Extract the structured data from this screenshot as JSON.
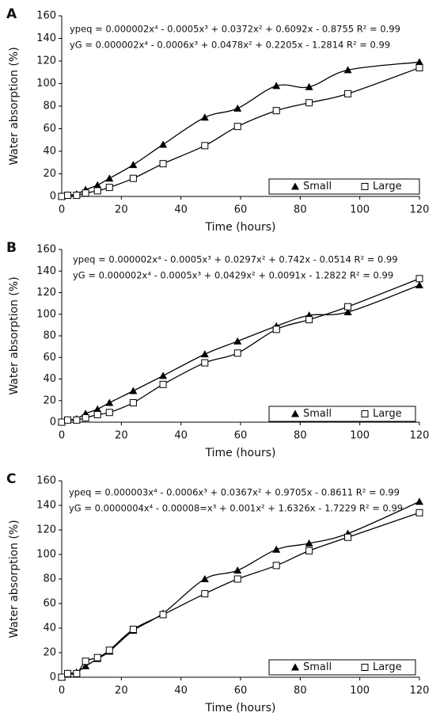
{
  "chart_data": [
    {
      "type": "scatter",
      "label": "A",
      "x_label": "Time (hours)",
      "y_label": "Water absorption (%)",
      "annotations": [
        "ypeq = 0.000002x⁴ - 0.0005x³ + 0.0372x² + 0.6092x - 0.8755 R² = 0.99",
        "yG = 0.000002x⁴ - 0.0006x³ + 0.0478x² + 0.2205x - 1.2814 R² = 0.99"
      ],
      "x": [
        0,
        2,
        5,
        8,
        12,
        16,
        24,
        34,
        48,
        59,
        72,
        83,
        96,
        120
      ],
      "series": [
        {
          "name": "Small",
          "color": "#000000",
          "marker": "triangle",
          "values": [
            0,
            1,
            2,
            6,
            10,
            16,
            28,
            46,
            70,
            78,
            98,
            97,
            112,
            119
          ]
        },
        {
          "name": "Large",
          "color": "#000000",
          "marker": "square",
          "values": [
            0,
            1,
            1,
            3,
            5,
            8,
            16,
            29,
            45,
            62,
            76,
            83,
            91,
            114
          ]
        }
      ],
      "xlim": [
        0,
        120
      ],
      "xticks": [
        0,
        20,
        40,
        60,
        80,
        100,
        120
      ],
      "ylim": [
        0,
        160
      ],
      "yticks": [
        0,
        20,
        40,
        60,
        80,
        100,
        120,
        140,
        160
      ],
      "legend": "lower right"
    },
    {
      "type": "scatter",
      "label": "B",
      "x_label": "Time (hours)",
      "y_label": "Water absorption (%)",
      "annotations": [
        "ypeq = 0.000002x⁴ - 0.0005x³ + 0.0297x² + 0.742x - 0.0514 R² = 0.99",
        "yG = 0.000002x⁴ - 0.0005x³ + 0.0429x² + 0.0091x - 1.2822 R² = 0.99"
      ],
      "x": [
        0,
        2,
        5,
        8,
        12,
        16,
        24,
        34,
        48,
        59,
        72,
        83,
        96,
        120
      ],
      "series": [
        {
          "name": "Small",
          "color": "#000000",
          "marker": "triangle",
          "values": [
            0,
            2,
            3,
            8,
            12,
            18,
            29,
            43,
            63,
            75,
            89,
            99,
            102,
            127
          ]
        },
        {
          "name": "Large",
          "color": "#000000",
          "marker": "square",
          "values": [
            0,
            2,
            2,
            4,
            7,
            9,
            18,
            35,
            55,
            64,
            86,
            95,
            107,
            133
          ]
        }
      ],
      "xlim": [
        0,
        120
      ],
      "xticks": [
        0,
        20,
        40,
        60,
        80,
        100,
        120
      ],
      "ylim": [
        0,
        160
      ],
      "yticks": [
        0,
        20,
        40,
        60,
        80,
        100,
        120,
        140,
        160
      ],
      "legend": "lower right"
    },
    {
      "type": "scatter",
      "label": "C",
      "x_label": "Time (hours)",
      "y_label": "Water absorption (%)",
      "annotations": [
        "ypeq = 0.000003x⁴ - 0.0006x³ + 0.0367x² + 0.9705x - 0.8611 R² = 0.99",
        "yG = 0.0000004x⁴ - 0.00008=x³ + 0.001x² + 1.6326x - 1.7229 R² = 0.99"
      ],
      "x": [
        0,
        2,
        5,
        8,
        12,
        16,
        24,
        34,
        48,
        59,
        72,
        83,
        96,
        120
      ],
      "series": [
        {
          "name": "Small",
          "color": "#000000",
          "marker": "triangle",
          "values": [
            0,
            3,
            4,
            9,
            15,
            21,
            38,
            52,
            80,
            87,
            104,
            109,
            117,
            143
          ]
        },
        {
          "name": "Large",
          "color": "#000000",
          "marker": "square",
          "values": [
            0,
            3,
            3,
            13,
            16,
            22,
            39,
            51,
            68,
            80,
            91,
            103,
            114,
            134
          ]
        }
      ],
      "xlim": [
        0,
        120
      ],
      "xticks": [
        0,
        20,
        40,
        60,
        80,
        100,
        120
      ],
      "ylim": [
        0,
        160
      ],
      "yticks": [
        0,
        20,
        40,
        60,
        80,
        100,
        120,
        140,
        160
      ],
      "legend": "lower right"
    }
  ]
}
